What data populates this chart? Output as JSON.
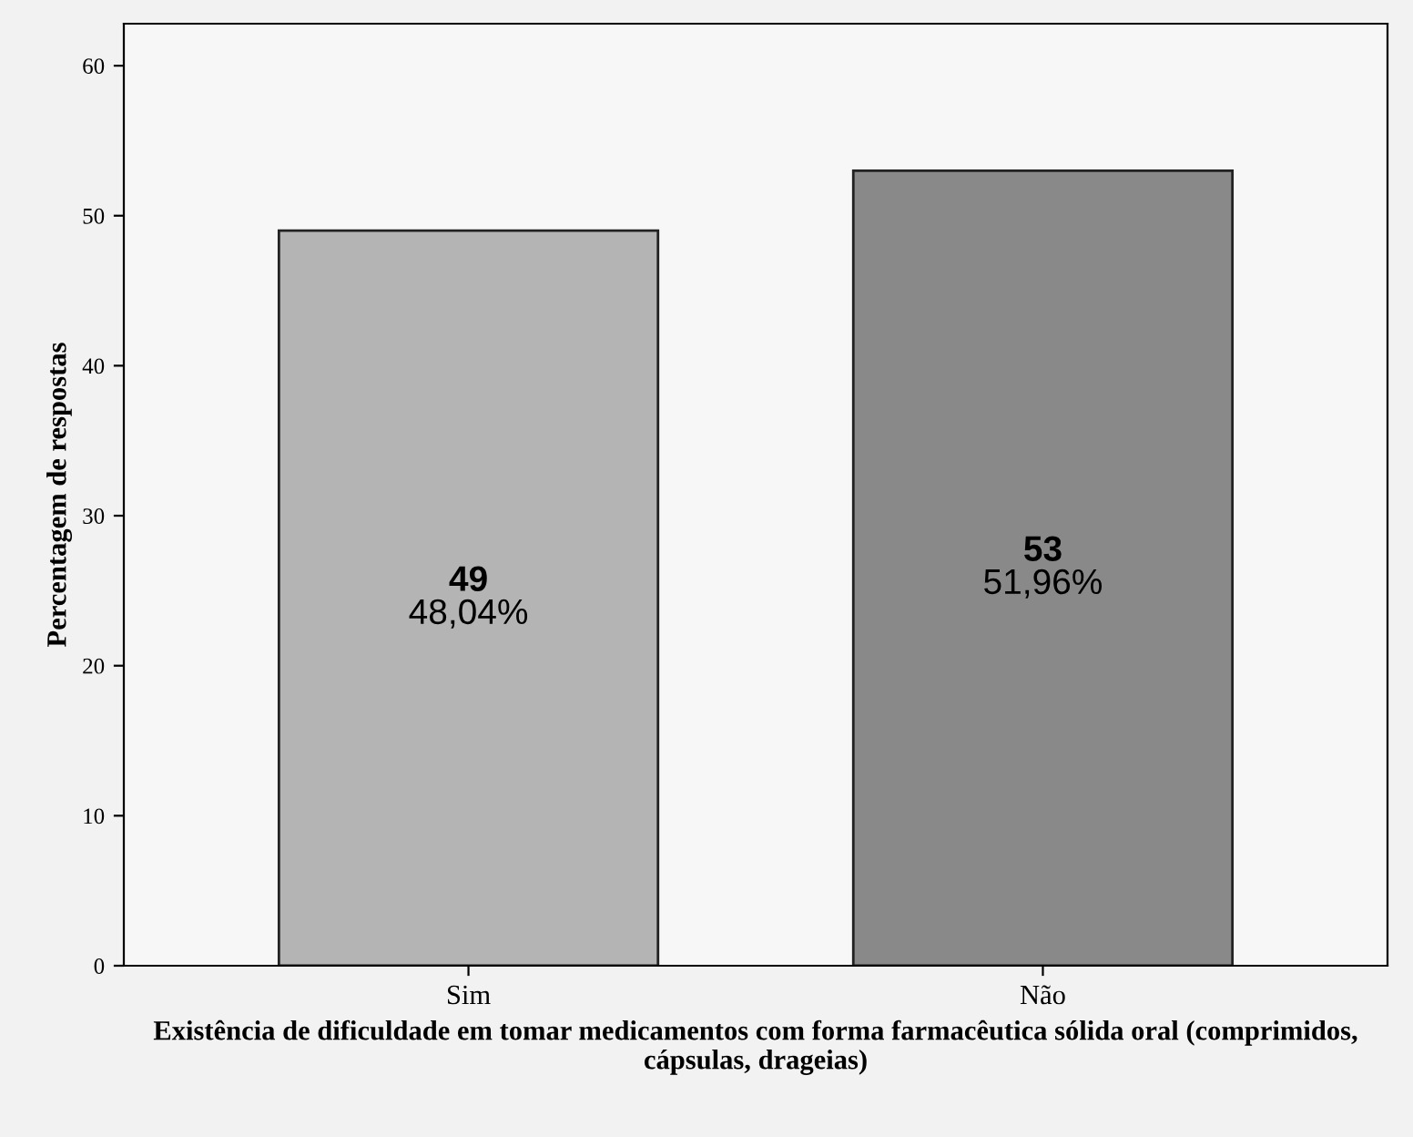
{
  "chart_data": {
    "type": "bar",
    "xlabel": "Existência de dificuldade em tomar medicamentos com forma farmacêutica sólida oral (comprimidos, cápsulas, drageias)",
    "ylabel": "Percentagem de respostas",
    "categories": [
      "Sim",
      "Não"
    ],
    "values": [
      49,
      53
    ],
    "colors": [
      "#b4b4b4",
      "#898989"
    ],
    "value_labels": [
      "49\n48,04%",
      "53\n51,96%"
    ],
    "ylim": [
      0,
      62.8
    ],
    "yticks": [
      0,
      10,
      20,
      30,
      40,
      50,
      60
    ],
    "grid": false
  }
}
